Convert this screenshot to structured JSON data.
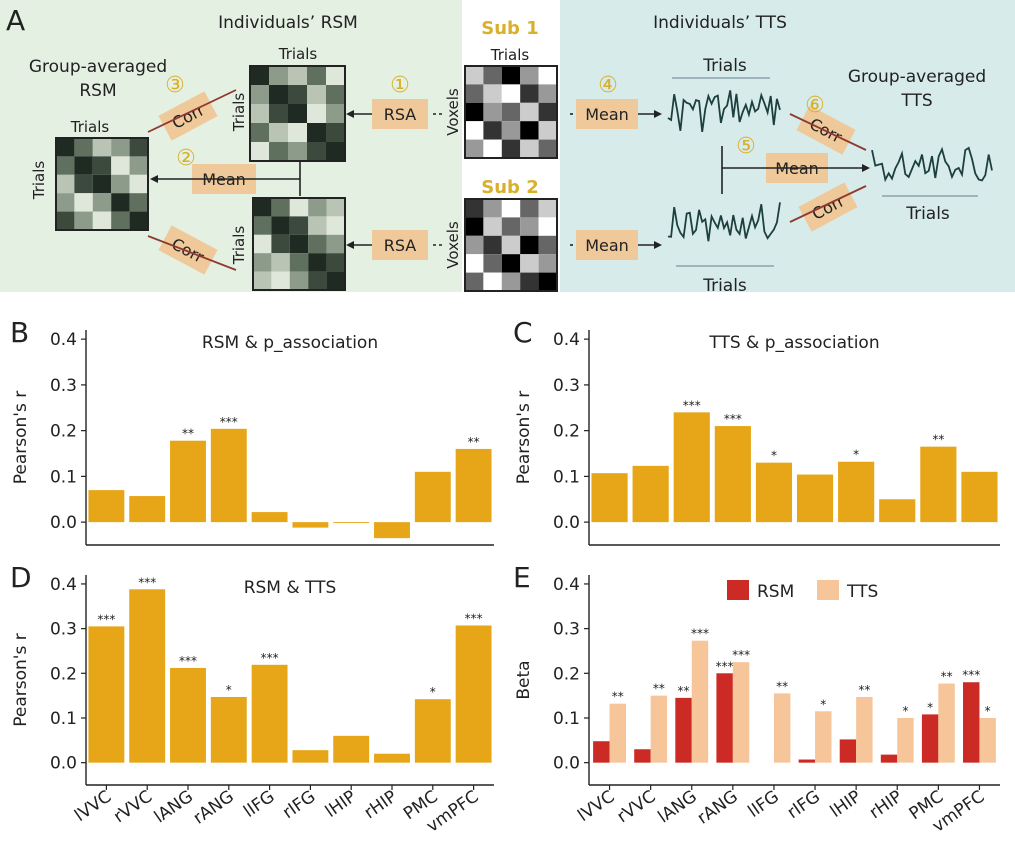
{
  "colors": {
    "bar": "#e7a617",
    "rsm": "#cc2b25",
    "tts": "#f6c599",
    "bg_left": "#e4f0e2",
    "bg_right": "#d6ebea",
    "box": "#efc99a",
    "badge": "#d8b02b",
    "line": "#1e3f3f",
    "arrow_red": "#8f3a2f",
    "arrow_gray": "#8ca3ab"
  },
  "panel_a": {
    "letter": "A",
    "title_rsm": "Individuals’ RSM",
    "title_tts": "Individuals’ TTS",
    "group_rsm_line1": "Group-averaged",
    "group_rsm_line2": "RSM",
    "group_tts_line1": "Group-averaged",
    "group_tts_line2": "TTS",
    "sub1": "Sub 1",
    "sub2": "Sub 2",
    "trials": "Trials",
    "voxels": "Voxels",
    "rsa": "RSA",
    "mean": "Mean",
    "corr": "Corr",
    "steps": [
      "①",
      "②",
      "③",
      "④",
      "⑤",
      "⑥"
    ]
  },
  "chart_data": [
    {
      "panel": "B",
      "type": "bar",
      "title": "RSM & p_association",
      "ylabel": "Pearson's r",
      "ylim": [
        -0.05,
        0.42
      ],
      "yticks": [
        "0.0",
        "0.1",
        "0.2",
        "0.3",
        "0.4"
      ],
      "categories": [
        "lVVC",
        "rVVC",
        "lANG",
        "rANG",
        "lIFG",
        "rIFG",
        "lHIP",
        "rHIP",
        "PMC",
        "vmPFC"
      ],
      "values": [
        0.07,
        0.057,
        0.178,
        0.204,
        0.022,
        -0.012,
        -0.002,
        -0.035,
        0.11,
        0.16
      ],
      "sig": [
        "",
        "",
        "**",
        "***",
        "",
        "",
        "",
        "",
        "",
        "**"
      ],
      "show_xlabels": false
    },
    {
      "panel": "C",
      "type": "bar",
      "title": "TTS & p_association",
      "ylabel": "Pearson's r",
      "ylim": [
        -0.05,
        0.42
      ],
      "yticks": [
        "0.0",
        "0.1",
        "0.2",
        "0.3",
        "0.4"
      ],
      "categories": [
        "lVVC",
        "rVVC",
        "lANG",
        "rANG",
        "lIFG",
        "rIFG",
        "lHIP",
        "rHIP",
        "PMC",
        "vmPFC"
      ],
      "values": [
        0.107,
        0.123,
        0.24,
        0.21,
        0.13,
        0.104,
        0.132,
        0.05,
        0.165,
        0.11
      ],
      "sig": [
        "",
        "",
        "***",
        "***",
        "*",
        "",
        "*",
        "",
        "**",
        ""
      ],
      "show_xlabels": false
    },
    {
      "panel": "D",
      "type": "bar",
      "title": "RSM & TTS",
      "ylabel": "Pearson's r",
      "ylim": [
        -0.05,
        0.42
      ],
      "yticks": [
        "0.0",
        "0.1",
        "0.2",
        "0.3",
        "0.4"
      ],
      "categories": [
        "lVVC",
        "rVVC",
        "lANG",
        "rANG",
        "lIFG",
        "rIFG",
        "lHIP",
        "rHIP",
        "PMC",
        "vmPFC"
      ],
      "values": [
        0.305,
        0.388,
        0.212,
        0.147,
        0.219,
        0.028,
        0.06,
        0.02,
        0.142,
        0.307
      ],
      "sig": [
        "***",
        "***",
        "***",
        "*",
        "***",
        "",
        "",
        "",
        "*",
        "***"
      ],
      "show_xlabels": true
    },
    {
      "panel": "E",
      "type": "bar",
      "title": "",
      "ylabel": "Beta",
      "ylim": [
        -0.05,
        0.42
      ],
      "yticks": [
        "0.0",
        "0.1",
        "0.2",
        "0.3",
        "0.4"
      ],
      "categories": [
        "lVVC",
        "rVVC",
        "lANG",
        "rANG",
        "lIFG",
        "rIFG",
        "lHIP",
        "rHIP",
        "PMC",
        "vmPFC"
      ],
      "legend": [
        "RSM",
        "TTS"
      ],
      "series": [
        {
          "name": "RSM",
          "values": [
            0.048,
            0.03,
            0.145,
            0.2,
            0.0,
            0.007,
            0.052,
            0.018,
            0.108,
            0.18
          ],
          "sig": [
            "",
            "",
            "**",
            "***",
            "",
            "",
            "",
            "",
            "*",
            "***"
          ]
        },
        {
          "name": "TTS",
          "values": [
            0.132,
            0.15,
            0.273,
            0.225,
            0.155,
            0.115,
            0.147,
            0.1,
            0.177,
            0.1
          ],
          "sig": [
            "**",
            "**",
            "***",
            "***",
            "**",
            "*",
            "**",
            "*",
            "**",
            "*"
          ]
        }
      ],
      "show_xlabels": true
    }
  ]
}
